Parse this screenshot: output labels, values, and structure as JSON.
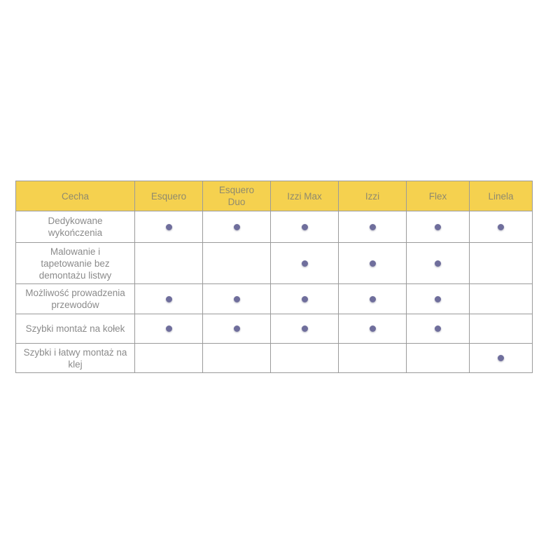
{
  "header": [
    "Cecha",
    "Esquero",
    "Esquero Duo",
    "Izzi Max",
    "Izzi",
    "Flex",
    "Linela"
  ],
  "rows": [
    {
      "feature": "Dedykowane wykończenia",
      "marks": [
        true,
        true,
        true,
        true,
        true,
        true
      ]
    },
    {
      "feature": "Malowanie i tapetowanie bez demontażu listwy",
      "marks": [
        false,
        false,
        true,
        true,
        true,
        false
      ]
    },
    {
      "feature": "Możliwość prowadzenia przewodów",
      "marks": [
        true,
        true,
        true,
        true,
        true,
        false
      ]
    },
    {
      "feature": "Szybki montaż na kołek",
      "marks": [
        true,
        true,
        true,
        true,
        true,
        false
      ]
    },
    {
      "feature": "Szybki i łatwy montaż na klej",
      "marks": [
        false,
        false,
        false,
        false,
        false,
        true
      ]
    }
  ],
  "colors": {
    "header_bg": "#f5d14f",
    "dot": "#6f6e9c"
  },
  "mark_icon": "filled-circle"
}
